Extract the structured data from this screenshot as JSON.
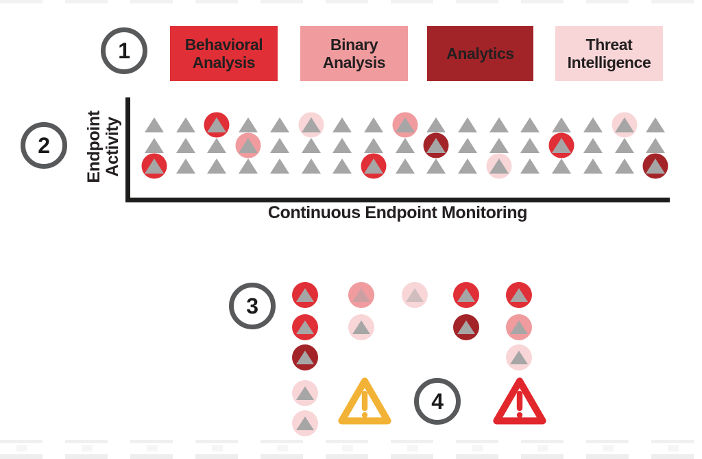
{
  "colors": {
    "red": "#e02f36",
    "pink": "#f09b9e",
    "dark_red": "#a32428",
    "light_pink": "#f8d6d8",
    "triangle_gray": "#a7a6a6",
    "axis_black": "#1d1d1b",
    "marker_ring_gray": "#58595b",
    "warning_yellow": "#f2b235",
    "warning_red": "#e1262c",
    "box_text": "#231f20"
  },
  "steps": {
    "one": "1",
    "two": "2",
    "three": "3",
    "four": "4"
  },
  "categories": [
    {
      "id": "behavioral-analysis",
      "label": "Behavioral Analysis",
      "color": "#e02f36"
    },
    {
      "id": "binary-analysis",
      "label": "Binary Analysis",
      "color": "#f09b9e"
    },
    {
      "id": "analytics",
      "label": "Analytics",
      "color": "#a32428"
    },
    {
      "id": "threat-intelligence",
      "label": "Threat Intelligence",
      "color": "#f8d6d8"
    }
  ],
  "monitor_chart": {
    "y_axis_label": "Endpoint Activity",
    "x_axis_label": "Continuous Endpoint Monitoring",
    "rows": 3,
    "columns": 17,
    "highlights": [
      {
        "row": 1,
        "col": 3,
        "type": "red"
      },
      {
        "row": 1,
        "col": 6,
        "type": "light_pink"
      },
      {
        "row": 1,
        "col": 9,
        "type": "pink"
      },
      {
        "row": 1,
        "col": 16,
        "type": "light_pink"
      },
      {
        "row": 2,
        "col": 4,
        "type": "pink"
      },
      {
        "row": 2,
        "col": 10,
        "type": "dark_red"
      },
      {
        "row": 2,
        "col": 14,
        "type": "red"
      },
      {
        "row": 3,
        "col": 1,
        "type": "red"
      },
      {
        "row": 3,
        "col": 8,
        "type": "red"
      },
      {
        "row": 3,
        "col": 12,
        "type": "light_pink"
      },
      {
        "row": 3,
        "col": 17,
        "type": "dark_red"
      }
    ]
  },
  "cluster": {
    "items": [
      {
        "col": 1,
        "row": 1,
        "type": "red"
      },
      {
        "col": 1,
        "row": 2,
        "type": "red"
      },
      {
        "col": 1,
        "row": 3,
        "type": "dark_red"
      },
      {
        "col": 1,
        "row": 4,
        "type": "light_pink"
      },
      {
        "col": 1,
        "row": 5,
        "type": "light_pink"
      },
      {
        "col": 2,
        "row": 1,
        "type": "pink",
        "faded": true
      },
      {
        "col": 2,
        "row": 2,
        "type": "light_pink"
      },
      {
        "col": 3,
        "row": 1,
        "type": "light_pink",
        "faded": true
      },
      {
        "col": 4,
        "row": 1,
        "type": "red"
      },
      {
        "col": 4,
        "row": 2,
        "type": "dark_red"
      },
      {
        "col": 5,
        "row": 1,
        "type": "red"
      },
      {
        "col": 5,
        "row": 2,
        "type": "pink"
      },
      {
        "col": 5,
        "row": 3,
        "type": "light_pink"
      }
    ]
  },
  "warnings": [
    {
      "id": "warning-yellow",
      "severity": "caution",
      "color": "#f2b235"
    },
    {
      "id": "warning-red",
      "severity": "alert",
      "color": "#e1262c"
    }
  ]
}
